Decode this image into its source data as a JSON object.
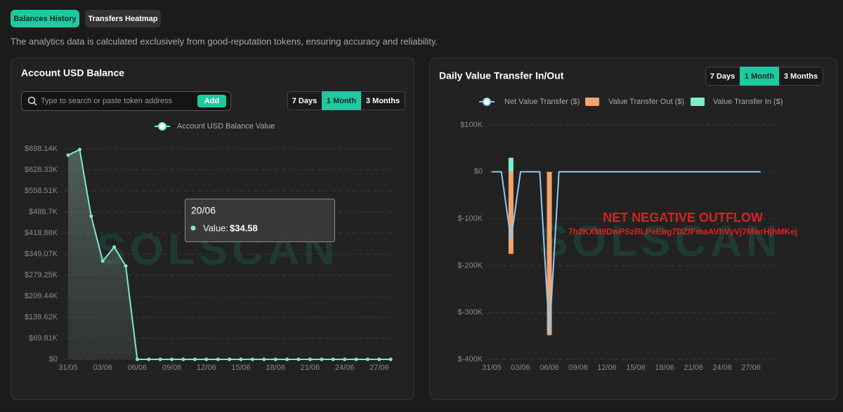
{
  "tabs": [
    "Balances History",
    "Transfers Heatmap"
  ],
  "active_tab": 0,
  "description": "The analytics data is calculated exclusively from good-reputation tokens, ensuring accuracy and reliability.",
  "watermark": "SOLSCAN",
  "chart_data": [
    {
      "type": "line",
      "title": "Account USD Balance",
      "search_placeholder": "Type to search or paste token address",
      "add_button": "Add",
      "periods": [
        "7 Days",
        "1 Month",
        "3 Months"
      ],
      "active_period": 1,
      "categories": [
        "31/05",
        null,
        null,
        "03/06",
        null,
        null,
        "06/06",
        null,
        null,
        "09/06",
        null,
        null,
        "12/06",
        null,
        null,
        "15/06",
        null,
        null,
        "18/06",
        null,
        null,
        "21/06",
        null,
        null,
        "24/06",
        null,
        null,
        "27/06",
        null
      ],
      "series": [
        {
          "name": "Account USD Balance Value",
          "color": "#7ee8cf",
          "values": [
            677200,
            695800,
            474700,
            325800,
            372300,
            309500,
            34.58,
            34.58,
            34.58,
            34.58,
            34.58,
            34.58,
            34.58,
            34.58,
            34.58,
            34.58,
            34.58,
            34.58,
            34.58,
            34.58,
            34.58,
            34.58,
            34.58,
            34.58,
            34.58,
            34.58,
            34.58,
            34.58,
            34.58
          ]
        }
      ],
      "ylim": [
        0,
        725000
      ],
      "yticks": [
        {
          "value": 0,
          "label": "$0"
        },
        {
          "value": 69810,
          "label": "$69.81K"
        },
        {
          "value": 139620,
          "label": "$139.62K"
        },
        {
          "value": 209440,
          "label": "$209.44K"
        },
        {
          "value": 279250,
          "label": "$279.25K"
        },
        {
          "value": 349070,
          "label": "$349.07K"
        },
        {
          "value": 418880,
          "label": "$418.88K"
        },
        {
          "value": 488700,
          "label": "$488.7K"
        },
        {
          "value": 558510,
          "label": "$558.51K"
        },
        {
          "value": 628330,
          "label": "$628.33K"
        },
        {
          "value": 698140,
          "label": "$698.14K"
        }
      ],
      "grid": true,
      "tooltip": {
        "title": "20/06",
        "label": "Value:",
        "value": 34.58,
        "value_label": "$34.58"
      }
    },
    {
      "type": "bar",
      "title": "Daily Value Transfer In/Out",
      "periods": [
        "7 Days",
        "1 Month",
        "3 Months"
      ],
      "active_period": 1,
      "categories": [
        "31/05",
        null,
        null,
        "03/06",
        null,
        null,
        "06/06",
        null,
        null,
        "09/06",
        null,
        null,
        "12/06",
        null,
        null,
        "15/06",
        null,
        null,
        "18/06",
        null,
        null,
        "21/06",
        null,
        null,
        "24/06",
        null,
        null,
        "27/06",
        null
      ],
      "series": [
        {
          "name": "Net Value Transfer ($)",
          "type": "line",
          "color": "#8ec8f5",
          "values": [
            0,
            0,
            -145000,
            0,
            0,
            0,
            -348000,
            0,
            0,
            0,
            0,
            0,
            0,
            0,
            0,
            0,
            0,
            0,
            0,
            0,
            0,
            0,
            0,
            0,
            0,
            0,
            0,
            0,
            0
          ]
        },
        {
          "name": "Value Transfer Out ($)",
          "type": "bar",
          "color": "#f4a46e",
          "values": [
            0,
            0,
            -175000,
            0,
            0,
            0,
            -348000,
            0,
            0,
            0,
            0,
            0,
            0,
            0,
            0,
            0,
            0,
            0,
            0,
            0,
            0,
            0,
            0,
            0,
            0,
            0,
            0,
            0,
            0
          ]
        },
        {
          "name": "Value Transfer In ($)",
          "type": "bar",
          "color": "#7eeecb",
          "values": [
            0,
            0,
            30000,
            0,
            0,
            0,
            0,
            0,
            0,
            0,
            0,
            0,
            0,
            0,
            0,
            0,
            0,
            0,
            0,
            0,
            0,
            0,
            0,
            0,
            0,
            0,
            0,
            0,
            0
          ]
        }
      ],
      "ylim": [
        -400000,
        100000
      ],
      "yticks": [
        {
          "value": -400000,
          "label": "$-400K"
        },
        {
          "value": -300000,
          "label": "$-300K"
        },
        {
          "value": -200000,
          "label": "$-200K"
        },
        {
          "value": -100000,
          "label": "$-100K"
        },
        {
          "value": 0,
          "label": "$0"
        },
        {
          "value": 100000,
          "label": "$100K"
        }
      ],
      "grid": true,
      "annotations": [
        "NET NEGATIVE OUTFLOW",
        "7h2KXM9DwPSzRLPeEbg7DZfFmaAVhVyVj7MwrHjhMKej"
      ]
    }
  ]
}
